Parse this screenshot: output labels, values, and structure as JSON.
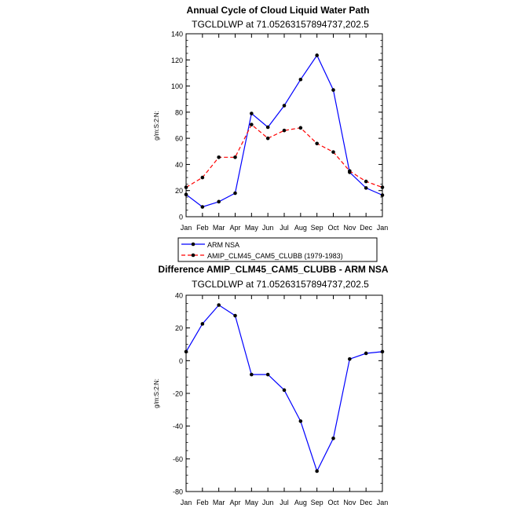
{
  "chart_data": [
    {
      "type": "line",
      "title": "Annual Cycle of Cloud Liquid Water Path",
      "subtitle": "TGCLDLWP  at  71.05263157894737,202.5",
      "ylabel": "g/m:S:2:N:",
      "xlabel": "",
      "categories": [
        "Jan",
        "Feb",
        "Mar",
        "Apr",
        "May",
        "Jun",
        "Jul",
        "Aug",
        "Sep",
        "Oct",
        "Nov",
        "Dec",
        "Jan"
      ],
      "ylim": [
        0,
        140
      ],
      "yticks": [
        0,
        20,
        40,
        60,
        80,
        100,
        120,
        140
      ],
      "series": [
        {
          "name": "ARM  NSA",
          "color": "#0000ff",
          "dash": "solid",
          "values": [
            17,
            7.5,
            11.5,
            18,
            79,
            68.5,
            85,
            105,
            123.5,
            97,
            34,
            22,
            16.5
          ]
        },
        {
          "name": "AMIP_CLM45_CAM5_CLUBB (1979-1983)",
          "color": "#ff0000",
          "dash": "dashed",
          "values": [
            22.5,
            30,
            45.5,
            45.5,
            70.5,
            60,
            66,
            68,
            56,
            49.5,
            35,
            27,
            22.5
          ]
        }
      ],
      "legend": "below",
      "grid": false
    },
    {
      "type": "line",
      "title": "Difference AMIP_CLM45_CAM5_CLUBB - ARM NSA",
      "subtitle": "TGCLDLWP  at  71.05263157894737,202.5",
      "ylabel": "g/m:S:2:N:",
      "xlabel": "",
      "categories": [
        "Jan",
        "Feb",
        "Mar",
        "Apr",
        "May",
        "Jun",
        "Jul",
        "Aug",
        "Sep",
        "Oct",
        "Nov",
        "Dec",
        "Jan"
      ],
      "ylim": [
        -80,
        40
      ],
      "yticks": [
        -80,
        -60,
        -40,
        -20,
        0,
        20,
        40
      ],
      "series": [
        {
          "color": "#0000ff",
          "dash": "solid",
          "values": [
            5.5,
            22.5,
            34,
            27.5,
            -8.5,
            -8.5,
            -18,
            -37,
            -67.5,
            -47.5,
            1,
            4.5,
            5.5
          ]
        }
      ],
      "grid": false
    }
  ]
}
